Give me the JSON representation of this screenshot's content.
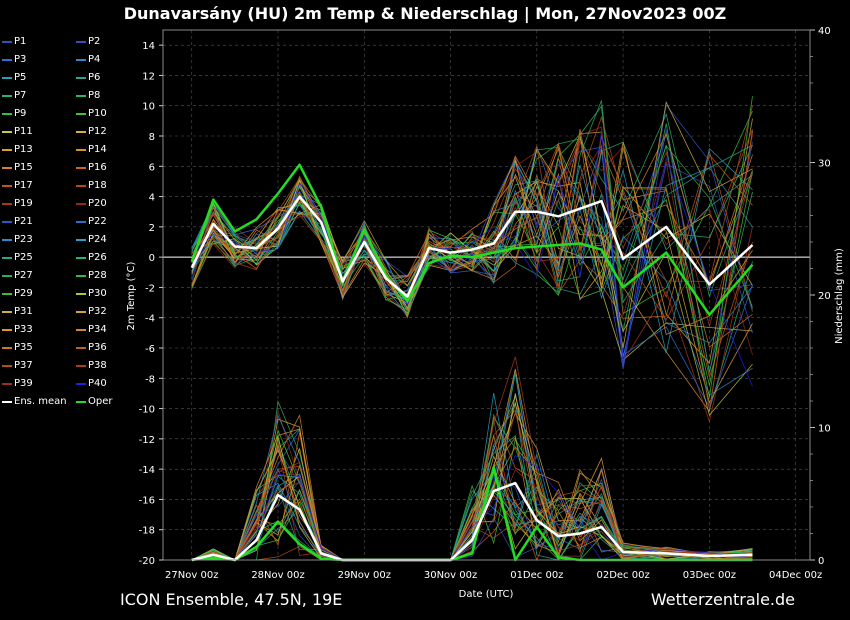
{
  "header": {
    "title": "Dunavarsány  (HU)  2m Temp & Niederschlag | Mon, 27Nov2023 00Z"
  },
  "footer": {
    "left": "ICON Ensemble, 47.5N, 19E",
    "right": "Wetterzentrale.de"
  },
  "chart_data": {
    "type": "line",
    "xlabel": "Date (UTC)",
    "ylabel_left": "2m Temp (°C)",
    "ylabel_right": "Niederschlag (mm)",
    "x_ticks": [
      "27Nov 00z",
      "28Nov 00z",
      "29Nov 00z",
      "30Nov 00z",
      "01Dec 00z",
      "02Dec 00z",
      "03Dec 00z",
      "04Dec 00z"
    ],
    "x_hours": [
      0,
      6,
      12,
      18,
      24,
      30,
      36,
      42,
      48,
      54,
      60,
      66,
      72,
      78,
      84,
      90,
      96,
      102,
      108,
      114,
      120,
      132,
      144,
      156,
      168,
      180
    ],
    "xlim": [
      0,
      180
    ],
    "temp_ylim": [
      -20,
      15
    ],
    "temp_ticks": [
      -20,
      -18,
      -16,
      -14,
      -12,
      -10,
      -8,
      -6,
      -4,
      -2,
      0,
      2,
      4,
      6,
      8,
      10,
      12,
      14
    ],
    "precip_ylim": [
      0,
      40
    ],
    "precip_ticks": [
      0,
      10,
      20,
      30,
      40
    ],
    "grid": true,
    "legend_position": "left",
    "temperature": {
      "ens_mean": [
        -0.7,
        2.2,
        0.7,
        0.6,
        1.9,
        4.0,
        2.3,
        -1.6,
        1.0,
        -1.4,
        -2.6,
        0.6,
        0.3,
        0.5,
        0.9,
        3.0,
        3.0,
        2.7,
        3.2,
        3.7,
        -0.1,
        2.0,
        -1.8,
        0.8
      ],
      "ens_mean_hours": [
        0,
        6,
        12,
        18,
        24,
        30,
        36,
        42,
        48,
        54,
        60,
        66,
        72,
        78,
        84,
        90,
        96,
        102,
        108,
        114,
        120,
        132,
        144,
        156
      ],
      "oper": [
        -0.3,
        3.8,
        1.7,
        2.5,
        4.2,
        6.1,
        3.3,
        -1.6,
        1.8,
        -1.2,
        -2.9,
        -0.4,
        0.1,
        0.0,
        0.3,
        0.6,
        0.7,
        0.8,
        0.9,
        0.5,
        -2.0,
        0.3,
        -3.8,
        -0.5
      ],
      "oper_hours": [
        0,
        6,
        12,
        18,
        24,
        30,
        36,
        42,
        48,
        54,
        60,
        66,
        72,
        78,
        84,
        90,
        96,
        102,
        108,
        114,
        120,
        132,
        144,
        156
      ]
    },
    "precipitation": {
      "ens_mean": [
        0.0,
        0.4,
        0.0,
        1.5,
        4.9,
        3.8,
        0.5,
        0.0,
        0.0,
        0.0,
        0.0,
        0.0,
        0.0,
        1.5,
        5.2,
        5.8,
        3.0,
        1.8,
        2.0,
        2.5,
        0.6,
        0.5,
        0.3,
        0.4
      ],
      "oper": [
        0.0,
        0.2,
        0.0,
        1.0,
        2.9,
        1.2,
        0.1,
        0.0,
        0.0,
        0.0,
        0.0,
        0.0,
        0.0,
        0.5,
        7.0,
        0.0,
        2.5,
        0.2,
        0.0,
        0.0,
        0.0,
        0.0,
        0.0,
        0.0
      ]
    },
    "legend": {
      "members": [
        {
          "label": "P1",
          "color": "#3b4cc0"
        },
        {
          "label": "P2",
          "color": "#3b4cc0"
        },
        {
          "label": "P3",
          "color": "#2f6fd6"
        },
        {
          "label": "P4",
          "color": "#2f86c8"
        },
        {
          "label": "P5",
          "color": "#2aa0b8"
        },
        {
          "label": "P6",
          "color": "#2aa58f"
        },
        {
          "label": "P7",
          "color": "#28b07a"
        },
        {
          "label": "P8",
          "color": "#2ab560"
        },
        {
          "label": "P9",
          "color": "#32c040"
        },
        {
          "label": "P10",
          "color": "#48c030"
        },
        {
          "label": "P11",
          "color": "#c8c850"
        },
        {
          "label": "P12",
          "color": "#d8b040"
        },
        {
          "label": "P13",
          "color": "#d8a030"
        },
        {
          "label": "P14",
          "color": "#d89030"
        },
        {
          "label": "P15",
          "color": "#d88030"
        },
        {
          "label": "P16",
          "color": "#c86820"
        },
        {
          "label": "P17",
          "color": "#c05820"
        },
        {
          "label": "P18",
          "color": "#b84818"
        },
        {
          "label": "P19",
          "color": "#a83818"
        },
        {
          "label": "P20",
          "color": "#982818"
        },
        {
          "label": "P21",
          "color": "#2f56c8"
        },
        {
          "label": "P22",
          "color": "#2f6cd0"
        },
        {
          "label": "P23",
          "color": "#2f8ac8"
        },
        {
          "label": "P24",
          "color": "#2aa0c0"
        },
        {
          "label": "P25",
          "color": "#28a888"
        },
        {
          "label": "P26",
          "color": "#28b078"
        },
        {
          "label": "P27",
          "color": "#28b060"
        },
        {
          "label": "P28",
          "color": "#30b848"
        },
        {
          "label": "P29",
          "color": "#40c030"
        },
        {
          "label": "P30",
          "color": "#b8c040"
        },
        {
          "label": "P31",
          "color": "#d0b040"
        },
        {
          "label": "P32",
          "color": "#d8a038"
        },
        {
          "label": "P33",
          "color": "#d89830"
        },
        {
          "label": "P34",
          "color": "#d08830"
        },
        {
          "label": "P35",
          "color": "#c87828"
        },
        {
          "label": "P36",
          "color": "#c06020"
        },
        {
          "label": "P37",
          "color": "#b05020"
        },
        {
          "label": "P38",
          "color": "#a84020"
        },
        {
          "label": "P39",
          "color": "#983020"
        },
        {
          "label": "P40",
          "color": "#2020e0"
        },
        {
          "label": "Ens. mean",
          "color": "#ffffff"
        },
        {
          "label": "Oper",
          "color": "#22dd22"
        }
      ]
    }
  }
}
